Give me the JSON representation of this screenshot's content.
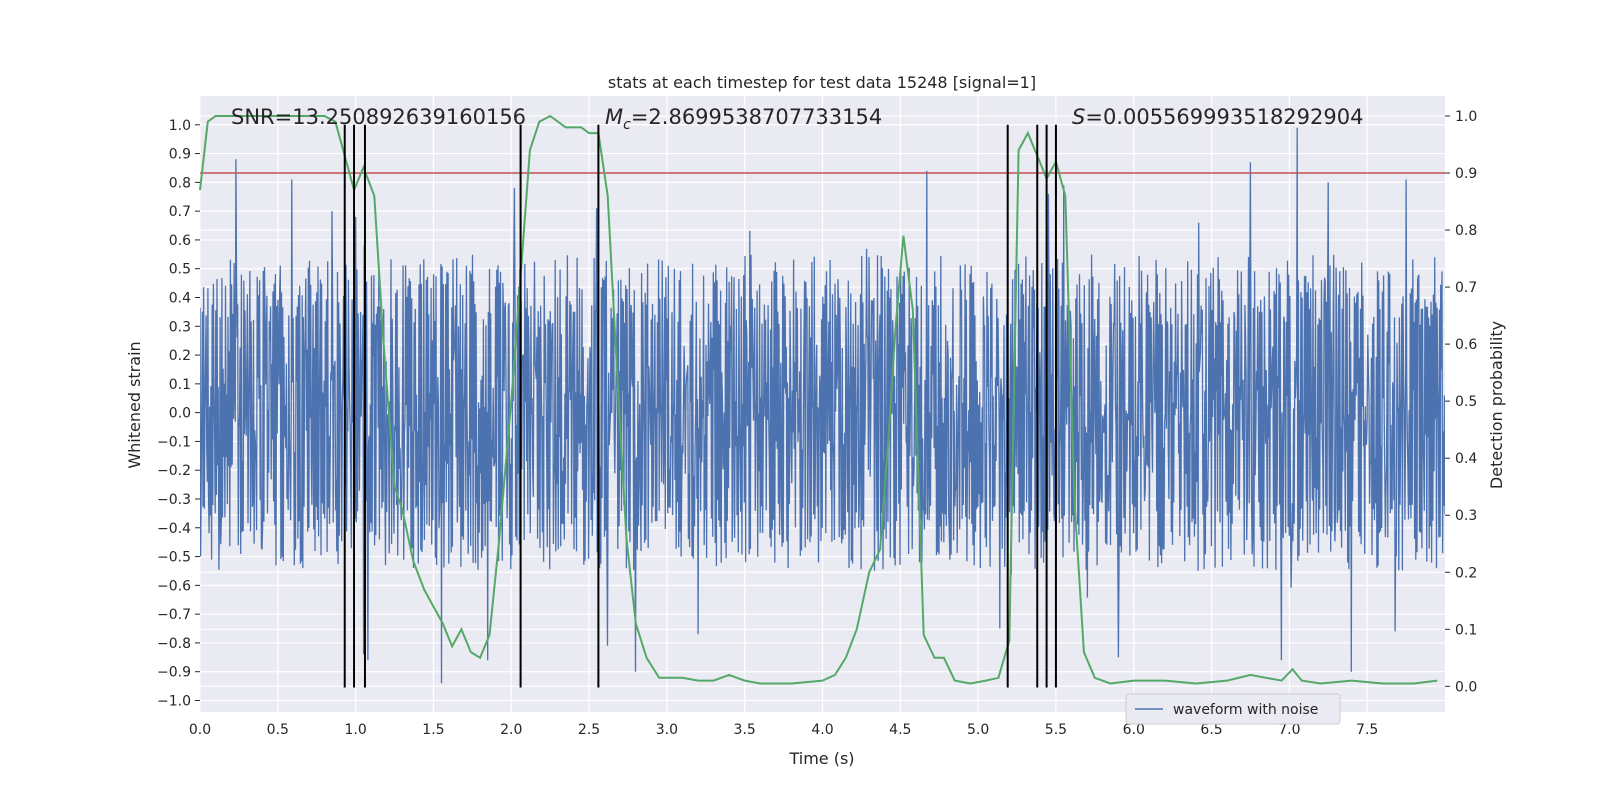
{
  "chart_data": {
    "type": "line",
    "title": "stats at each timestep for test data 15248 [signal=1]",
    "xlabel": "Time (s)",
    "ylabel_left": "Whitened strain",
    "ylabel_right": "Detection probability",
    "xlim": [
      0.0,
      8.0
    ],
    "ylim_left": [
      -1.04,
      1.1
    ],
    "ylim_right": [
      -0.045,
      1.035
    ],
    "x_ticks": [
      "0.0",
      "0.5",
      "1.0",
      "1.5",
      "2.0",
      "2.5",
      "3.0",
      "3.5",
      "4.0",
      "4.5",
      "5.0",
      "5.5",
      "6.0",
      "6.5",
      "7.0",
      "7.5"
    ],
    "x_tick_values": [
      0,
      0.5,
      1,
      1.5,
      2,
      2.5,
      3,
      3.5,
      4,
      4.5,
      5,
      5.5,
      6,
      6.5,
      7,
      7.5
    ],
    "y_left_ticks": [
      "1.0",
      "0.9",
      "0.8",
      "0.7",
      "0.6",
      "0.5",
      "0.4",
      "0.3",
      "0.2",
      "0.1",
      "0.0",
      "−0.1",
      "−0.2",
      "−0.3",
      "−0.4",
      "−0.5",
      "−0.6",
      "−0.7",
      "−0.8",
      "−0.9",
      "−1.0"
    ],
    "y_left_tick_values": [
      1.0,
      0.9,
      0.8,
      0.7,
      0.6,
      0.5,
      0.4,
      0.3,
      0.2,
      0.1,
      0.0,
      -0.1,
      -0.2,
      -0.3,
      -0.4,
      -0.5,
      -0.6,
      -0.7,
      -0.8,
      -0.9,
      -1.0
    ],
    "y_right_ticks": [
      "1.0",
      "0.9",
      "0.8",
      "0.7",
      "0.6",
      "0.5",
      "0.4",
      "0.3",
      "0.2",
      "0.1",
      "0.0"
    ],
    "y_right_tick_values": [
      1.0,
      0.9,
      0.8,
      0.7,
      0.6,
      0.5,
      0.4,
      0.3,
      0.2,
      0.1,
      0.0
    ],
    "grid": true,
    "legend": {
      "placement": "bottom-right",
      "entries": [
        {
          "label": "waveform with noise",
          "color": "#4c72b0"
        }
      ]
    },
    "annotations": {
      "snr": "SNR=13.250892639160156",
      "mc_symbol": "M",
      "mc_sub": "c",
      "mc_value": "=2.8699538707733154",
      "s_symbol": "S",
      "s_value": "=0.005569993518292904"
    },
    "threshold": {
      "axis": "right",
      "value": 0.9,
      "color": "#c44e52"
    },
    "vertical_markers": [
      0.93,
      0.99,
      1.06,
      2.06,
      2.56,
      5.19,
      5.38,
      5.44,
      5.5
    ],
    "vertical_marker_range": [
      -0.955,
      1.0
    ],
    "waveform": {
      "name": "waveform with noise",
      "color": "#4c72b0",
      "x_range": [
        0.0,
        8.0
      ],
      "samples": 2048,
      "seed": 15248,
      "core_std": 0.2,
      "envelope_typical": 0.55,
      "peaks": [
        {
          "x": 0.23,
          "y": 0.88
        },
        {
          "x": 0.59,
          "y": 0.81
        },
        {
          "x": 0.85,
          "y": 0.7
        },
        {
          "x": 1.0,
          "y": 0.68
        },
        {
          "x": 1.05,
          "y": -0.84
        },
        {
          "x": 1.08,
          "y": -0.86
        },
        {
          "x": 1.55,
          "y": -0.94
        },
        {
          "x": 1.85,
          "y": -0.86
        },
        {
          "x": 2.02,
          "y": 0.78
        },
        {
          "x": 2.55,
          "y": 0.71
        },
        {
          "x": 2.62,
          "y": -0.81
        },
        {
          "x": 2.8,
          "y": -0.9
        },
        {
          "x": 3.2,
          "y": -0.77
        },
        {
          "x": 4.67,
          "y": 0.84
        },
        {
          "x": 5.45,
          "y": 0.76
        },
        {
          "x": 5.14,
          "y": -0.75
        },
        {
          "x": 5.55,
          "y": 0.79
        },
        {
          "x": 5.9,
          "y": -0.85
        },
        {
          "x": 6.75,
          "y": 0.87
        },
        {
          "x": 6.95,
          "y": -0.86
        },
        {
          "x": 7.05,
          "y": 0.99
        },
        {
          "x": 7.25,
          "y": 0.8
        },
        {
          "x": 7.4,
          "y": -0.9
        },
        {
          "x": 7.68,
          "y": -0.76
        },
        {
          "x": 7.75,
          "y": 0.81
        }
      ]
    },
    "probability": {
      "name": "Detection probability",
      "color": "#55a868",
      "x": [
        0.0,
        0.05,
        0.1,
        0.2,
        0.3,
        0.4,
        0.5,
        0.6,
        0.7,
        0.8,
        0.87,
        0.93,
        0.99,
        1.05,
        1.12,
        1.18,
        1.25,
        1.3,
        1.37,
        1.44,
        1.5,
        1.56,
        1.62,
        1.68,
        1.74,
        1.8,
        1.86,
        1.92,
        2.0,
        2.06,
        2.12,
        2.18,
        2.25,
        2.35,
        2.45,
        2.5,
        2.56,
        2.62,
        2.68,
        2.74,
        2.8,
        2.87,
        2.95,
        3.1,
        3.2,
        3.3,
        3.4,
        3.45,
        3.5,
        3.6,
        3.8,
        4.0,
        4.08,
        4.15,
        4.22,
        4.3,
        4.37,
        4.42,
        4.47,
        4.52,
        4.58,
        4.65,
        4.72,
        4.78,
        4.85,
        4.95,
        5.05,
        5.13,
        5.2,
        5.26,
        5.32,
        5.38,
        5.44,
        5.5,
        5.56,
        5.62,
        5.68,
        5.75,
        5.85,
        6.0,
        6.2,
        6.4,
        6.6,
        6.75,
        6.85,
        6.95,
        7.02,
        7.08,
        7.2,
        7.4,
        7.6,
        7.8,
        7.95
      ],
      "y": [
        0.87,
        0.99,
        1.0,
        1.0,
        1.0,
        1.0,
        1.0,
        1.0,
        1.0,
        1.0,
        0.99,
        0.93,
        0.87,
        0.91,
        0.86,
        0.6,
        0.35,
        0.31,
        0.22,
        0.17,
        0.14,
        0.11,
        0.07,
        0.1,
        0.06,
        0.05,
        0.09,
        0.25,
        0.5,
        0.72,
        0.94,
        0.99,
        1.0,
        0.98,
        0.98,
        0.97,
        0.97,
        0.86,
        0.55,
        0.26,
        0.11,
        0.05,
        0.015,
        0.015,
        0.01,
        0.01,
        0.02,
        0.015,
        0.01,
        0.005,
        0.005,
        0.01,
        0.02,
        0.05,
        0.1,
        0.2,
        0.24,
        0.42,
        0.63,
        0.79,
        0.66,
        0.09,
        0.05,
        0.05,
        0.01,
        0.005,
        0.01,
        0.015,
        0.08,
        0.94,
        0.97,
        0.93,
        0.89,
        0.92,
        0.86,
        0.32,
        0.06,
        0.015,
        0.005,
        0.01,
        0.01,
        0.005,
        0.01,
        0.02,
        0.015,
        0.01,
        0.03,
        0.01,
        0.005,
        0.01,
        0.005,
        0.005,
        0.01
      ]
    }
  }
}
